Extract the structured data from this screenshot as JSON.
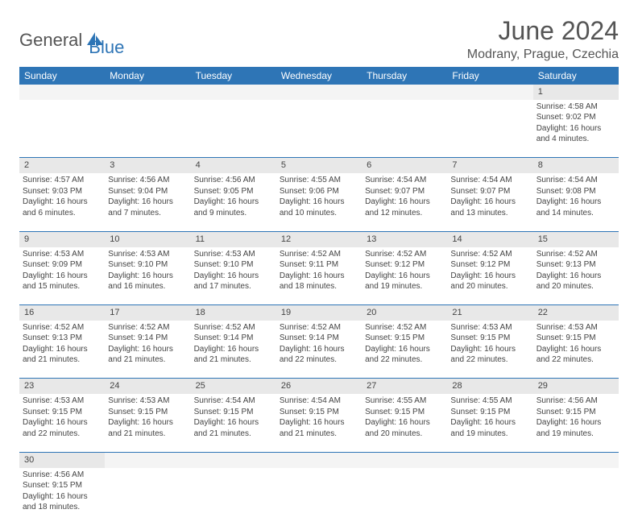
{
  "logo": {
    "part1": "General",
    "part2": "Blue"
  },
  "title": "June 2024",
  "location": "Modrany, Prague, Czechia",
  "day_headers": [
    "Sunday",
    "Monday",
    "Tuesday",
    "Wednesday",
    "Thursday",
    "Friday",
    "Saturday"
  ],
  "colors": {
    "header_bg": "#2e75b6",
    "header_text": "#ffffff",
    "daynum_bg": "#e8e8e8",
    "border": "#2e75b6",
    "text": "#444444",
    "title_text": "#555555"
  },
  "weeks": [
    {
      "nums": [
        "",
        "",
        "",
        "",
        "",
        "",
        "1"
      ],
      "cells": [
        null,
        null,
        null,
        null,
        null,
        null,
        {
          "sunrise": "4:58 AM",
          "sunset": "9:02 PM",
          "daylight": "16 hours",
          "and": "and 4 minutes."
        }
      ]
    },
    {
      "nums": [
        "2",
        "3",
        "4",
        "5",
        "6",
        "7",
        "8"
      ],
      "cells": [
        {
          "sunrise": "4:57 AM",
          "sunset": "9:03 PM",
          "daylight": "16 hours",
          "and": "and 6 minutes."
        },
        {
          "sunrise": "4:56 AM",
          "sunset": "9:04 PM",
          "daylight": "16 hours",
          "and": "and 7 minutes."
        },
        {
          "sunrise": "4:56 AM",
          "sunset": "9:05 PM",
          "daylight": "16 hours",
          "and": "and 9 minutes."
        },
        {
          "sunrise": "4:55 AM",
          "sunset": "9:06 PM",
          "daylight": "16 hours",
          "and": "and 10 minutes."
        },
        {
          "sunrise": "4:54 AM",
          "sunset": "9:07 PM",
          "daylight": "16 hours",
          "and": "and 12 minutes."
        },
        {
          "sunrise": "4:54 AM",
          "sunset": "9:07 PM",
          "daylight": "16 hours",
          "and": "and 13 minutes."
        },
        {
          "sunrise": "4:54 AM",
          "sunset": "9:08 PM",
          "daylight": "16 hours",
          "and": "and 14 minutes."
        }
      ]
    },
    {
      "nums": [
        "9",
        "10",
        "11",
        "12",
        "13",
        "14",
        "15"
      ],
      "cells": [
        {
          "sunrise": "4:53 AM",
          "sunset": "9:09 PM",
          "daylight": "16 hours",
          "and": "and 15 minutes."
        },
        {
          "sunrise": "4:53 AM",
          "sunset": "9:10 PM",
          "daylight": "16 hours",
          "and": "and 16 minutes."
        },
        {
          "sunrise": "4:53 AM",
          "sunset": "9:10 PM",
          "daylight": "16 hours",
          "and": "and 17 minutes."
        },
        {
          "sunrise": "4:52 AM",
          "sunset": "9:11 PM",
          "daylight": "16 hours",
          "and": "and 18 minutes."
        },
        {
          "sunrise": "4:52 AM",
          "sunset": "9:12 PM",
          "daylight": "16 hours",
          "and": "and 19 minutes."
        },
        {
          "sunrise": "4:52 AM",
          "sunset": "9:12 PM",
          "daylight": "16 hours",
          "and": "and 20 minutes."
        },
        {
          "sunrise": "4:52 AM",
          "sunset": "9:13 PM",
          "daylight": "16 hours",
          "and": "and 20 minutes."
        }
      ]
    },
    {
      "nums": [
        "16",
        "17",
        "18",
        "19",
        "20",
        "21",
        "22"
      ],
      "cells": [
        {
          "sunrise": "4:52 AM",
          "sunset": "9:13 PM",
          "daylight": "16 hours",
          "and": "and 21 minutes."
        },
        {
          "sunrise": "4:52 AM",
          "sunset": "9:14 PM",
          "daylight": "16 hours",
          "and": "and 21 minutes."
        },
        {
          "sunrise": "4:52 AM",
          "sunset": "9:14 PM",
          "daylight": "16 hours",
          "and": "and 21 minutes."
        },
        {
          "sunrise": "4:52 AM",
          "sunset": "9:14 PM",
          "daylight": "16 hours",
          "and": "and 22 minutes."
        },
        {
          "sunrise": "4:52 AM",
          "sunset": "9:15 PM",
          "daylight": "16 hours",
          "and": "and 22 minutes."
        },
        {
          "sunrise": "4:53 AM",
          "sunset": "9:15 PM",
          "daylight": "16 hours",
          "and": "and 22 minutes."
        },
        {
          "sunrise": "4:53 AM",
          "sunset": "9:15 PM",
          "daylight": "16 hours",
          "and": "and 22 minutes."
        }
      ]
    },
    {
      "nums": [
        "23",
        "24",
        "25",
        "26",
        "27",
        "28",
        "29"
      ],
      "cells": [
        {
          "sunrise": "4:53 AM",
          "sunset": "9:15 PM",
          "daylight": "16 hours",
          "and": "and 22 minutes."
        },
        {
          "sunrise": "4:53 AM",
          "sunset": "9:15 PM",
          "daylight": "16 hours",
          "and": "and 21 minutes."
        },
        {
          "sunrise": "4:54 AM",
          "sunset": "9:15 PM",
          "daylight": "16 hours",
          "and": "and 21 minutes."
        },
        {
          "sunrise": "4:54 AM",
          "sunset": "9:15 PM",
          "daylight": "16 hours",
          "and": "and 21 minutes."
        },
        {
          "sunrise": "4:55 AM",
          "sunset": "9:15 PM",
          "daylight": "16 hours",
          "and": "and 20 minutes."
        },
        {
          "sunrise": "4:55 AM",
          "sunset": "9:15 PM",
          "daylight": "16 hours",
          "and": "and 19 minutes."
        },
        {
          "sunrise": "4:56 AM",
          "sunset": "9:15 PM",
          "daylight": "16 hours",
          "and": "and 19 minutes."
        }
      ]
    },
    {
      "nums": [
        "30",
        "",
        "",
        "",
        "",
        "",
        ""
      ],
      "cells": [
        {
          "sunrise": "4:56 AM",
          "sunset": "9:15 PM",
          "daylight": "16 hours",
          "and": "and 18 minutes."
        },
        null,
        null,
        null,
        null,
        null,
        null
      ]
    }
  ]
}
